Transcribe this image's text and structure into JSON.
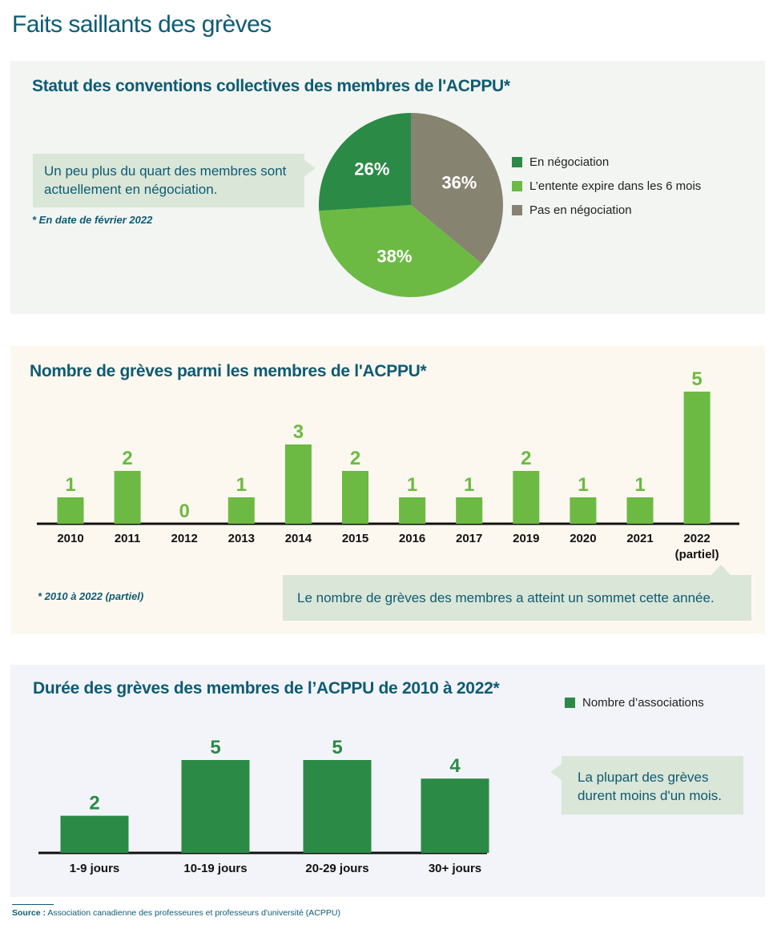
{
  "page_title": "Faits saillants des grèves",
  "source": {
    "label": "Source :",
    "text": "Association canadienne des professeures et professeurs d'université (ACPPU)"
  },
  "colors": {
    "dark_green": "#2b8a46",
    "light_green": "#6cba44",
    "grey": "#878371",
    "navy": "#0e5b74",
    "callout_bg": "#dae6d7"
  },
  "panel1": {
    "title": "Statut des conventions collectives des membres de l'ACPPU*",
    "callout": "Un peu plus du quart des membres sont actuellement en négociation.",
    "footnote": "* En date de février 2022"
  },
  "panel2": {
    "title": "Nombre de grèves parmi les membres de l'ACPPU*",
    "callout": "Le nombre de grèves des membres a atteint un sommet cette année.",
    "footnote": "* 2010 à 2022 (partiel)"
  },
  "panel3": {
    "title": "Durée des grèves des membres de l’ACPPU de 2010 à 2022*",
    "callout": "La plupart des grèves durent moins d'un mois."
  },
  "chart_data": [
    {
      "type": "pie",
      "title": "Statut des conventions collectives des membres de l'ACPPU*",
      "slices": [
        {
          "label": "En négociation",
          "value": 26,
          "display": "26%",
          "color": "#2b8a46"
        },
        {
          "label": "L’entente expire dans les 6 mois",
          "value": 38,
          "display": "38%",
          "color": "#6cba44"
        },
        {
          "label": "Pas en négociation",
          "value": 36,
          "display": "36%",
          "color": "#878371"
        }
      ],
      "legend_position": "right"
    },
    {
      "type": "bar",
      "title": "Nombre de grèves parmi les membres de l'ACPPU*",
      "categories": [
        "2010",
        "2011",
        "2012",
        "2013",
        "2014",
        "2015",
        "2016",
        "2017",
        "2019",
        "2020",
        "2021",
        "2022"
      ],
      "category_sublabels": [
        "",
        "",
        "",
        "",
        "",
        "",
        "",
        "",
        "",
        "",
        "",
        "(partiel)"
      ],
      "values": [
        1,
        2,
        0,
        1,
        3,
        2,
        1,
        1,
        2,
        1,
        1,
        5
      ],
      "color": "#6cba44",
      "ylim": [
        0,
        5
      ],
      "grid": false
    },
    {
      "type": "bar",
      "title": "Durée des grèves des membres de l’ACPPU de 2010 à 2022*",
      "categories": [
        "1-9 jours",
        "10-19 jours",
        "20-29 jours",
        "30+ jours"
      ],
      "series": [
        {
          "name": "Nombre d’associations",
          "values": [
            2,
            5,
            5,
            4
          ],
          "color": "#2b8a46"
        }
      ],
      "ylim": [
        0,
        5
      ],
      "legend_position": "top-right",
      "grid": false
    }
  ]
}
